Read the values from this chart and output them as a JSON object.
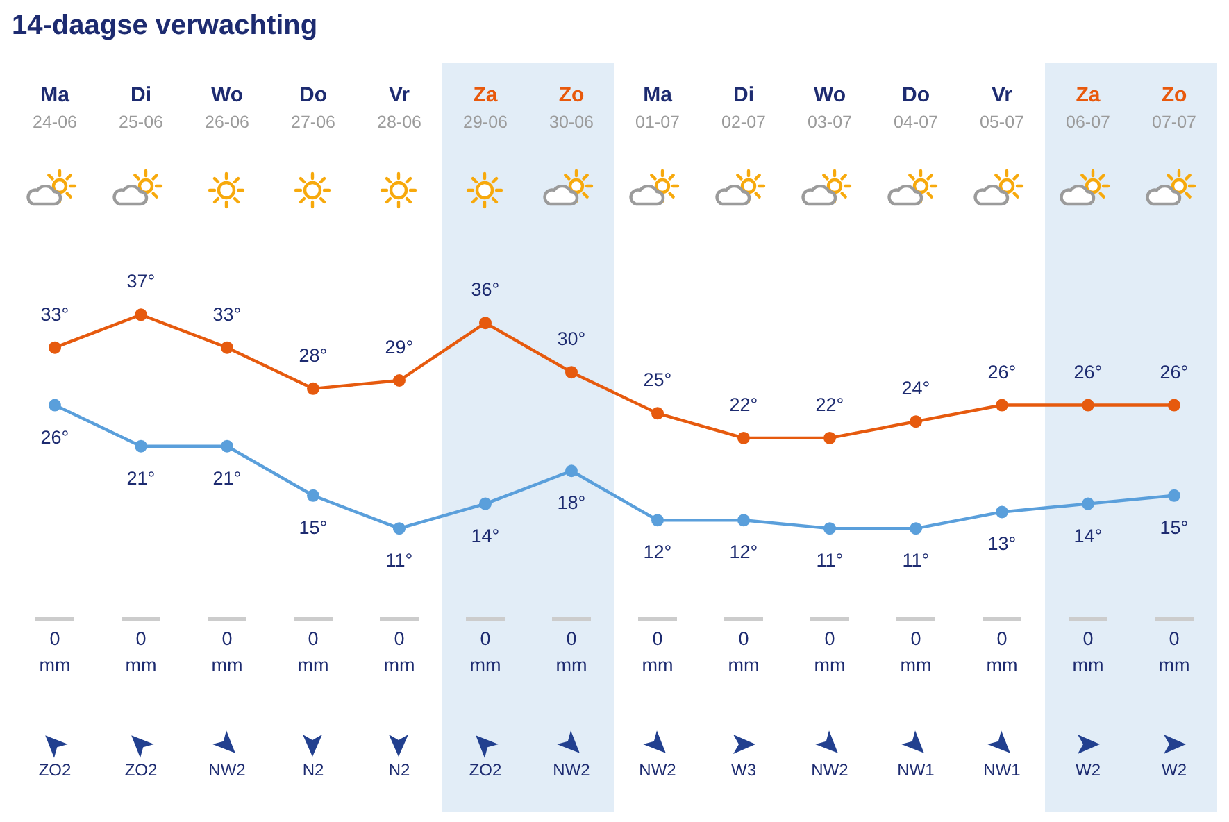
{
  "chart_data": {
    "type": "line",
    "title": "14-daagse verwachting",
    "categories": [
      "Ma 24-06",
      "Di 25-06",
      "Wo 26-06",
      "Do 27-06",
      "Vr 28-06",
      "Za 29-06",
      "Zo 30-06",
      "Ma 01-07",
      "Di 02-07",
      "Wo 03-07",
      "Do 04-07",
      "Vr 05-07",
      "Za 06-07",
      "Zo 07-07"
    ],
    "series": [
      {
        "color": "#e65a0e",
        "values": [
          33,
          37,
          33,
          28,
          29,
          36,
          30,
          25,
          22,
          22,
          24,
          26,
          26,
          26
        ],
        "value_labels": [
          "33°",
          "37°",
          "33°",
          "28°",
          "29°",
          "36°",
          "30°",
          "25°",
          "22°",
          "22°",
          "24°",
          "26°",
          "26°",
          "26°"
        ]
      },
      {
        "color": "#5a9fdb",
        "values": [
          26,
          21,
          21,
          15,
          11,
          14,
          18,
          12,
          12,
          11,
          11,
          13,
          14,
          15
        ],
        "value_labels": [
          "26°",
          "21°",
          "21°",
          "15°",
          "11°",
          "14°",
          "18°",
          "12°",
          "12°",
          "11°",
          "11°",
          "13°",
          "14°",
          "15°"
        ]
      },
      {
        "type": "bar",
        "color": "#cccccc",
        "values": [
          0,
          0,
          0,
          0,
          0,
          0,
          0,
          0,
          0,
          0,
          0,
          0,
          0,
          0
        ],
        "value_labels": [
          "0 mm",
          "0 mm",
          "0 mm",
          "0 mm",
          "0 mm",
          "0 mm",
          "0 mm",
          "0 mm",
          "0 mm",
          "0 mm",
          "0 mm",
          "0 mm",
          "0 mm",
          "0 mm"
        ]
      }
    ],
    "ylim": [
      -24.8,
      75.2
    ],
    "bands": [
      {
        "axis": "x",
        "from": "Za 29-06",
        "to": "Zo 30-06",
        "color": "#e2edf7"
      },
      {
        "axis": "x",
        "from": "Za 06-07",
        "to": "Zo 07-07",
        "color": "#e2edf7"
      }
    ],
    "annotations": [
      "ZO2",
      "ZO2",
      "NW2",
      "N2",
      "N2",
      "ZO2",
      "NW2",
      "NW2",
      "W3",
      "NW2",
      "NW1",
      "NW1",
      "W2",
      "W2"
    ],
    "tick_labels": "x",
    "marker": "circle",
    "line_style": "solid",
    "grid": false
  }
}
